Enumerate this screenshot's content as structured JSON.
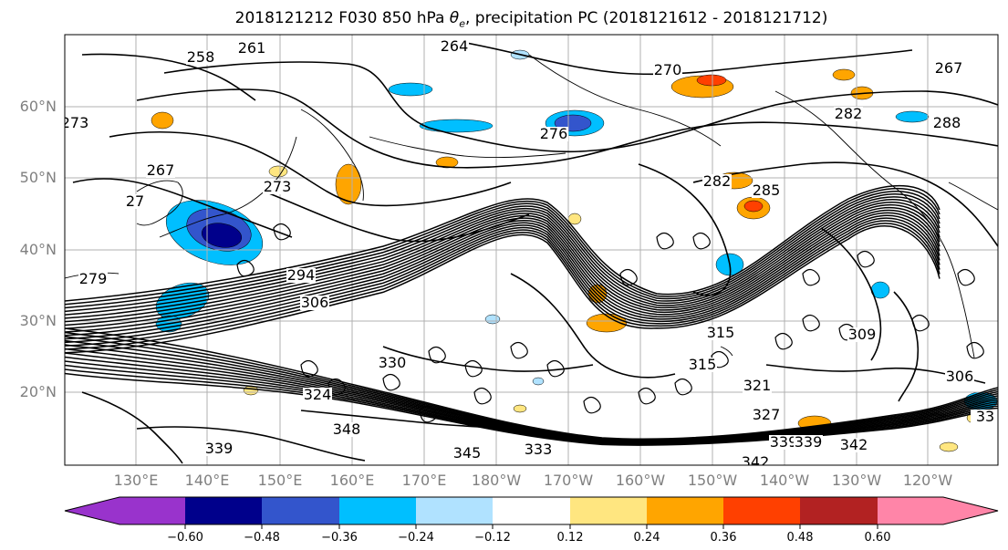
{
  "title": {
    "run": "2018121212",
    "forecast_hour": "F030",
    "level": "850 hPa",
    "field_symbol": "θ",
    "field_subscript": "e",
    "field_suffix": ", precipitation PC",
    "period": "(2018121612 - 2018121712)"
  },
  "lat_labels": [
    "60°N",
    "50°N",
    "40°N",
    "30°N",
    "20°N"
  ],
  "lon_labels": [
    "130°E",
    "140°E",
    "150°E",
    "160°E",
    "170°E",
    "180°W",
    "170°W",
    "160°W",
    "150°W",
    "140°W",
    "130°W",
    "120°W"
  ],
  "contour_labels": [
    "258",
    "261",
    "264",
    "270",
    "267",
    "288",
    "282",
    "276",
    "285",
    "282",
    "273",
    "267",
    "279",
    "294",
    "306",
    "315",
    "315",
    "321",
    "327",
    "309",
    "306",
    "324",
    "330",
    "339",
    "348",
    "345",
    "333",
    "342",
    "339",
    "342",
    "339",
    "33",
    "273",
    "27"
  ],
  "colorbar": {
    "ticks": [
      "−0.60",
      "−0.48",
      "−0.36",
      "−0.24",
      "−0.12",
      "0.12",
      "0.24",
      "0.36",
      "0.48",
      "0.60"
    ],
    "colors": [
      "#9933cc",
      "#00008b",
      "#3355cc",
      "#00bfff",
      "#b0e2ff",
      "#ffffff",
      "#ffe680",
      "#ffa500",
      "#ff4000",
      "#b22222",
      "#ff85a8"
    ]
  },
  "colors": {
    "contour": "#000000",
    "grid": "#b0b0b0",
    "axis_label": "#808080"
  }
}
